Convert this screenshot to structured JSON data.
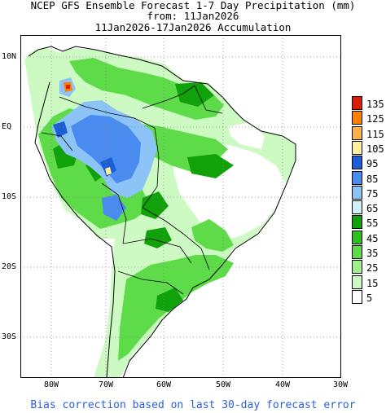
{
  "header": {
    "line1": "NCEP GFS Ensemble Forecast 1-7 Day Precipitation (mm)",
    "line2": "from: 11Jan2026",
    "line3": "11Jan2026-17Jan2026 Accumulation"
  },
  "axes": {
    "lat_labels": [
      "10N",
      "EQ",
      "10S",
      "20S",
      "30S"
    ],
    "lon_labels": [
      "80W",
      "70W",
      "60W",
      "50W",
      "40W",
      "30W"
    ]
  },
  "legend": {
    "levels": [
      "135",
      "125",
      "115",
      "105",
      "95",
      "85",
      "75",
      "65",
      "55",
      "45",
      "35",
      "25",
      "15",
      "5"
    ],
    "colors": [
      "#d81e05",
      "#ff7f00",
      "#ffb14a",
      "#fff09b",
      "#1c5ed6",
      "#4a8bef",
      "#8dc4f7",
      "#cff0f8",
      "#11a10b",
      "#2bc01e",
      "#5ddb48",
      "#9ef08c",
      "#cdfac3",
      "#ffffff"
    ]
  },
  "footer": "Bias correction based on last 30-day forecast error"
}
